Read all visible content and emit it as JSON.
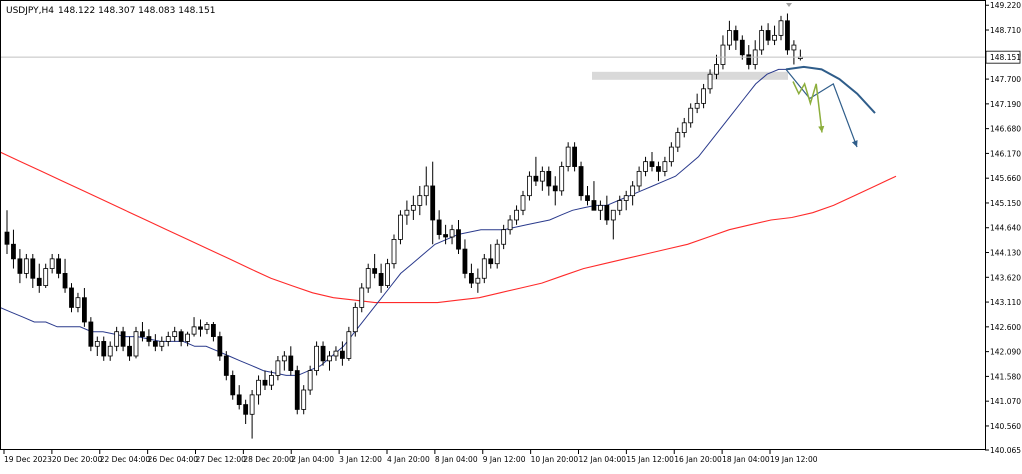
{
  "colors": {
    "background": "#ffffff",
    "frame": "#000000",
    "bull_candle_body": "#ffffff",
    "bear_candle_body": "#000000",
    "candle_outline": "#000000",
    "grid_line": "#c8c8c8",
    "price_line": "#c0c0c0",
    "zone_fill": "#d9d9d9",
    "ma_slow": "#ff2a2a",
    "ma_fast": "#2a3a8c",
    "projection_blue": "#2f5d8a",
    "projection_green": "#8cae3c"
  },
  "chart_data": {
    "type": "candlestick",
    "symbol_label": "USDJPY,H4",
    "ohlc_label": "148.122 148.307 148.083 148.151",
    "current_price_label": "148.151",
    "current_price": 148.151,
    "ylim": [
      140.065,
      149.225
    ],
    "y_ticks": [
      "149.220",
      "148.710",
      "148.200",
      "147.700",
      "147.190",
      "146.680",
      "146.170",
      "145.660",
      "145.150",
      "144.640",
      "144.130",
      "143.620",
      "143.110",
      "142.600",
      "142.090",
      "141.580",
      "141.070",
      "140.560",
      "140.065"
    ],
    "x_ticks": [
      "19 Dec 2023",
      "20 Dec 20:00",
      "22 Dec 04:00",
      "26 Dec 04:00",
      "27 Dec 12:00",
      "28 Dec 20:00",
      "2 Jan 04:00",
      "3 Jan 12:00",
      "4 Jan 20:00",
      "8 Jan 04:00",
      "9 Jan 12:00",
      "10 Jan 20:00",
      "12 Jan 04:00",
      "15 Jan 12:00",
      "16 Jan 20:00",
      "18 Jan 04:00",
      "19 Jan 12:00"
    ],
    "candles": [
      [
        144.55,
        145.0,
        144.1,
        144.3
      ],
      [
        144.3,
        144.6,
        143.8,
        144.0
      ],
      [
        144.0,
        144.2,
        143.5,
        143.7
      ],
      [
        143.7,
        144.1,
        143.6,
        144.0
      ],
      [
        144.0,
        144.1,
        143.4,
        143.6
      ],
      [
        143.6,
        143.9,
        143.3,
        143.45
      ],
      [
        143.45,
        143.9,
        143.4,
        143.8
      ],
      [
        143.8,
        144.1,
        143.7,
        144.0
      ],
      [
        144.0,
        144.1,
        143.6,
        143.7
      ],
      [
        143.7,
        144.0,
        143.3,
        143.4
      ],
      [
        143.4,
        143.5,
        142.9,
        143.0
      ],
      [
        143.0,
        143.3,
        142.9,
        143.2
      ],
      [
        143.2,
        143.4,
        142.6,
        142.7
      ],
      [
        142.7,
        142.8,
        142.1,
        142.2
      ],
      [
        142.2,
        142.4,
        142.0,
        142.3
      ],
      [
        142.3,
        142.4,
        141.9,
        142.0
      ],
      [
        142.0,
        142.3,
        141.9,
        142.2
      ],
      [
        142.2,
        142.6,
        142.1,
        142.5
      ],
      [
        142.5,
        142.6,
        142.1,
        142.2
      ],
      [
        142.2,
        142.4,
        141.9,
        142.0
      ],
      [
        142.0,
        142.6,
        141.95,
        142.5
      ],
      [
        142.5,
        142.7,
        142.3,
        142.4
      ],
      [
        142.4,
        142.55,
        142.2,
        142.3
      ],
      [
        142.3,
        142.45,
        142.1,
        142.2
      ],
      [
        142.2,
        142.4,
        142.1,
        142.3
      ],
      [
        142.3,
        142.5,
        142.2,
        142.4
      ],
      [
        142.4,
        142.6,
        142.3,
        142.5
      ],
      [
        142.5,
        142.55,
        142.2,
        142.3
      ],
      [
        142.3,
        142.5,
        142.2,
        142.45
      ],
      [
        142.45,
        142.8,
        142.4,
        142.6
      ],
      [
        142.6,
        142.75,
        142.4,
        142.55
      ],
      [
        142.55,
        142.7,
        142.45,
        142.65
      ],
      [
        142.65,
        142.7,
        142.3,
        142.4
      ],
      [
        142.4,
        142.5,
        141.9,
        142.0
      ],
      [
        142.0,
        142.1,
        141.5,
        141.6
      ],
      [
        141.6,
        141.7,
        141.1,
        141.2
      ],
      [
        141.2,
        141.4,
        140.9,
        141.0
      ],
      [
        141.0,
        141.1,
        140.6,
        140.8
      ],
      [
        140.8,
        141.3,
        140.3,
        141.2
      ],
      [
        141.2,
        141.6,
        141.0,
        141.5
      ],
      [
        141.5,
        141.7,
        141.3,
        141.4
      ],
      [
        141.4,
        141.7,
        141.3,
        141.6
      ],
      [
        141.6,
        142.0,
        141.5,
        141.9
      ],
      [
        141.9,
        142.1,
        141.7,
        142.0
      ],
      [
        142.0,
        142.2,
        141.6,
        141.7
      ],
      [
        141.7,
        141.8,
        140.8,
        140.9
      ],
      [
        140.9,
        141.4,
        140.8,
        141.3
      ],
      [
        141.3,
        141.8,
        141.2,
        141.7
      ],
      [
        141.7,
        142.3,
        141.6,
        142.2
      ],
      [
        142.2,
        142.3,
        141.8,
        141.9
      ],
      [
        141.9,
        142.1,
        141.7,
        142.0
      ],
      [
        142.0,
        142.2,
        141.9,
        142.1
      ],
      [
        142.1,
        142.3,
        141.8,
        141.95
      ],
      [
        141.95,
        142.6,
        141.9,
        142.5
      ],
      [
        142.5,
        143.1,
        142.4,
        143.0
      ],
      [
        143.0,
        143.5,
        142.9,
        143.4
      ],
      [
        143.4,
        143.9,
        143.3,
        143.8
      ],
      [
        143.8,
        144.1,
        143.6,
        143.7
      ],
      [
        143.7,
        143.9,
        143.3,
        143.45
      ],
      [
        143.45,
        144.0,
        143.4,
        143.9
      ],
      [
        143.9,
        144.5,
        143.8,
        144.4
      ],
      [
        144.4,
        145.0,
        144.3,
        144.9
      ],
      [
        144.9,
        145.2,
        144.7,
        145.0
      ],
      [
        145.0,
        145.3,
        144.8,
        145.1
      ],
      [
        145.1,
        145.5,
        144.9,
        145.3
      ],
      [
        145.3,
        145.9,
        145.1,
        145.5
      ],
      [
        145.5,
        146.0,
        144.3,
        144.8
      ],
      [
        144.8,
        145.0,
        144.4,
        144.5
      ],
      [
        144.5,
        144.7,
        144.3,
        144.45
      ],
      [
        144.45,
        144.7,
        144.3,
        144.6
      ],
      [
        144.6,
        144.8,
        144.1,
        144.2
      ],
      [
        144.2,
        144.4,
        143.6,
        143.7
      ],
      [
        143.7,
        143.9,
        143.4,
        143.5
      ],
      [
        143.5,
        143.8,
        143.3,
        143.6
      ],
      [
        143.6,
        144.1,
        143.5,
        144.0
      ],
      [
        144.0,
        144.3,
        143.8,
        143.9
      ],
      [
        143.9,
        144.4,
        143.8,
        144.3
      ],
      [
        144.3,
        144.7,
        144.2,
        144.6
      ],
      [
        144.6,
        144.9,
        144.5,
        144.8
      ],
      [
        144.8,
        145.1,
        144.7,
        145.0
      ],
      [
        145.0,
        145.4,
        144.9,
        145.3
      ],
      [
        145.3,
        145.8,
        145.2,
        145.7
      ],
      [
        145.7,
        146.1,
        145.5,
        145.6
      ],
      [
        145.6,
        145.9,
        145.4,
        145.8
      ],
      [
        145.8,
        145.9,
        145.3,
        145.5
      ],
      [
        145.5,
        145.7,
        145.1,
        145.4
      ],
      [
        145.4,
        146.0,
        145.3,
        145.9
      ],
      [
        145.9,
        146.4,
        145.8,
        146.3
      ],
      [
        146.3,
        146.4,
        145.8,
        145.9
      ],
      [
        145.9,
        146.0,
        145.2,
        145.3
      ],
      [
        145.3,
        145.5,
        145.1,
        145.2
      ],
      [
        145.2,
        145.6,
        145.0,
        145.0
      ],
      [
        145.0,
        145.2,
        144.8,
        145.1
      ],
      [
        145.1,
        145.3,
        144.7,
        144.8
      ],
      [
        144.8,
        145.0,
        144.4,
        145.0
      ],
      [
        145.0,
        145.3,
        144.9,
        145.2
      ],
      [
        145.2,
        145.4,
        145.0,
        145.3
      ],
      [
        145.3,
        145.6,
        145.1,
        145.5
      ],
      [
        145.5,
        145.9,
        145.4,
        145.8
      ],
      [
        145.8,
        146.1,
        145.7,
        146.0
      ],
      [
        146.0,
        146.2,
        145.8,
        145.9
      ],
      [
        145.9,
        146.0,
        145.6,
        145.8
      ],
      [
        145.8,
        146.1,
        145.7,
        146.0
      ],
      [
        146.0,
        146.4,
        145.9,
        146.3
      ],
      [
        146.3,
        146.7,
        146.2,
        146.6
      ],
      [
        146.6,
        146.9,
        146.5,
        146.8
      ],
      [
        146.8,
        147.2,
        146.7,
        147.1
      ],
      [
        147.1,
        147.4,
        147.0,
        147.2
      ],
      [
        147.2,
        147.6,
        147.1,
        147.5
      ],
      [
        147.5,
        147.9,
        147.4,
        147.8
      ],
      [
        147.8,
        148.2,
        147.7,
        148.0
      ],
      [
        148.0,
        148.6,
        147.9,
        148.4
      ],
      [
        148.4,
        148.9,
        148.3,
        148.7
      ],
      [
        148.7,
        148.8,
        148.3,
        148.5
      ],
      [
        148.5,
        148.6,
        148.1,
        148.2
      ],
      [
        148.2,
        148.4,
        147.9,
        148.0
      ],
      [
        148.0,
        148.5,
        147.9,
        148.3
      ],
      [
        148.3,
        148.8,
        148.2,
        148.7
      ],
      [
        148.7,
        148.85,
        148.4,
        148.5
      ],
      [
        148.5,
        148.8,
        148.4,
        148.6
      ],
      [
        148.6,
        149.0,
        148.5,
        148.9
      ],
      [
        148.9,
        149.05,
        148.2,
        148.3
      ],
      [
        148.3,
        148.5,
        148.0,
        148.4
      ],
      [
        148.122,
        148.307,
        148.083,
        148.151
      ]
    ],
    "ma_fast_values": [
      143.0,
      142.9,
      142.8,
      142.7,
      142.7,
      142.6,
      142.6,
      142.6,
      142.5,
      142.5,
      142.45,
      142.4,
      142.4,
      142.35,
      142.3,
      142.3,
      142.3,
      142.2,
      142.2,
      142.1,
      142.0,
      141.9,
      141.8,
      141.7,
      141.65,
      141.6,
      141.6,
      141.7,
      141.8,
      142.0,
      142.2,
      142.5,
      142.8,
      143.1,
      143.4,
      143.7,
      143.9,
      144.1,
      144.3,
      144.4,
      144.5,
      144.55,
      144.6,
      144.6,
      144.6,
      144.65,
      144.7,
      144.75,
      144.8,
      144.9,
      145.0,
      145.05,
      145.1,
      145.1,
      145.2,
      145.3,
      145.4,
      145.5,
      145.6,
      145.7,
      145.9,
      146.1,
      146.4,
      146.7,
      147.0,
      147.3,
      147.6,
      147.8,
      147.9,
      147.9
    ],
    "ma_slow_values": [
      146.2,
      146.0,
      145.8,
      145.6,
      145.4,
      145.2,
      145.0,
      144.8,
      144.6,
      144.4,
      144.2,
      144.0,
      143.8,
      143.6,
      143.45,
      143.3,
      143.2,
      143.15,
      143.1,
      143.1,
      143.1,
      143.1,
      143.15,
      143.2,
      143.3,
      143.4,
      143.5,
      143.65,
      143.8,
      143.9,
      144.0,
      144.1,
      144.2,
      144.3,
      144.45,
      144.6,
      144.7,
      144.8,
      144.85,
      144.95,
      145.1,
      145.3,
      145.5,
      145.7
    ],
    "resistance_zone": [
      147.7,
      147.85
    ],
    "projection_blue_arc": [
      147.9,
      147.95,
      147.9,
      147.7,
      147.4,
      147.0
    ],
    "projection_blue_zigzag": [
      147.9,
      147.3,
      147.6,
      146.3
    ],
    "projection_green_zigzag": [
      147.65,
      147.4,
      147.6,
      147.2,
      147.6,
      146.6
    ],
    "grid": false,
    "legend": "none"
  }
}
